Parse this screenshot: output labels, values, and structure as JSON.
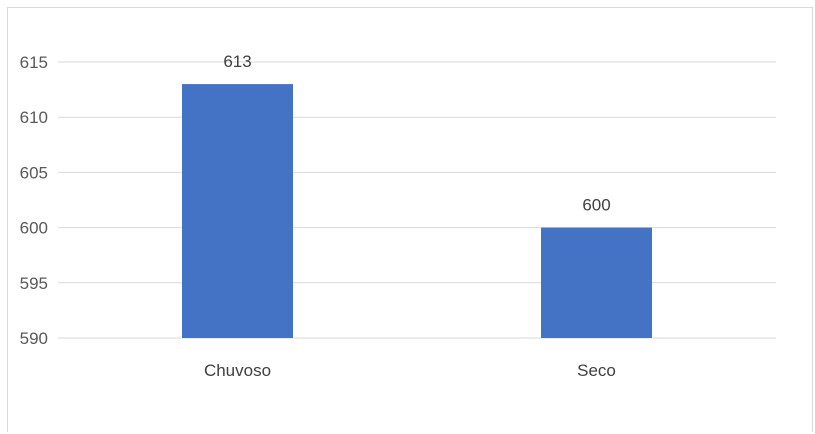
{
  "chart_data": {
    "type": "bar",
    "categories": [
      "Chuvoso",
      "Seco"
    ],
    "values": [
      613,
      600
    ],
    "data_labels": [
      "613",
      "600"
    ],
    "ylim": [
      590,
      615
    ],
    "yticks": [
      590,
      595,
      600,
      605,
      610,
      615
    ],
    "ytick_labels": [
      "590",
      "595",
      "600",
      "605",
      "610",
      "615"
    ],
    "grid": true,
    "legend": "none",
    "bar_color": "#4472C4",
    "grid_color": "#d9d9d9"
  }
}
